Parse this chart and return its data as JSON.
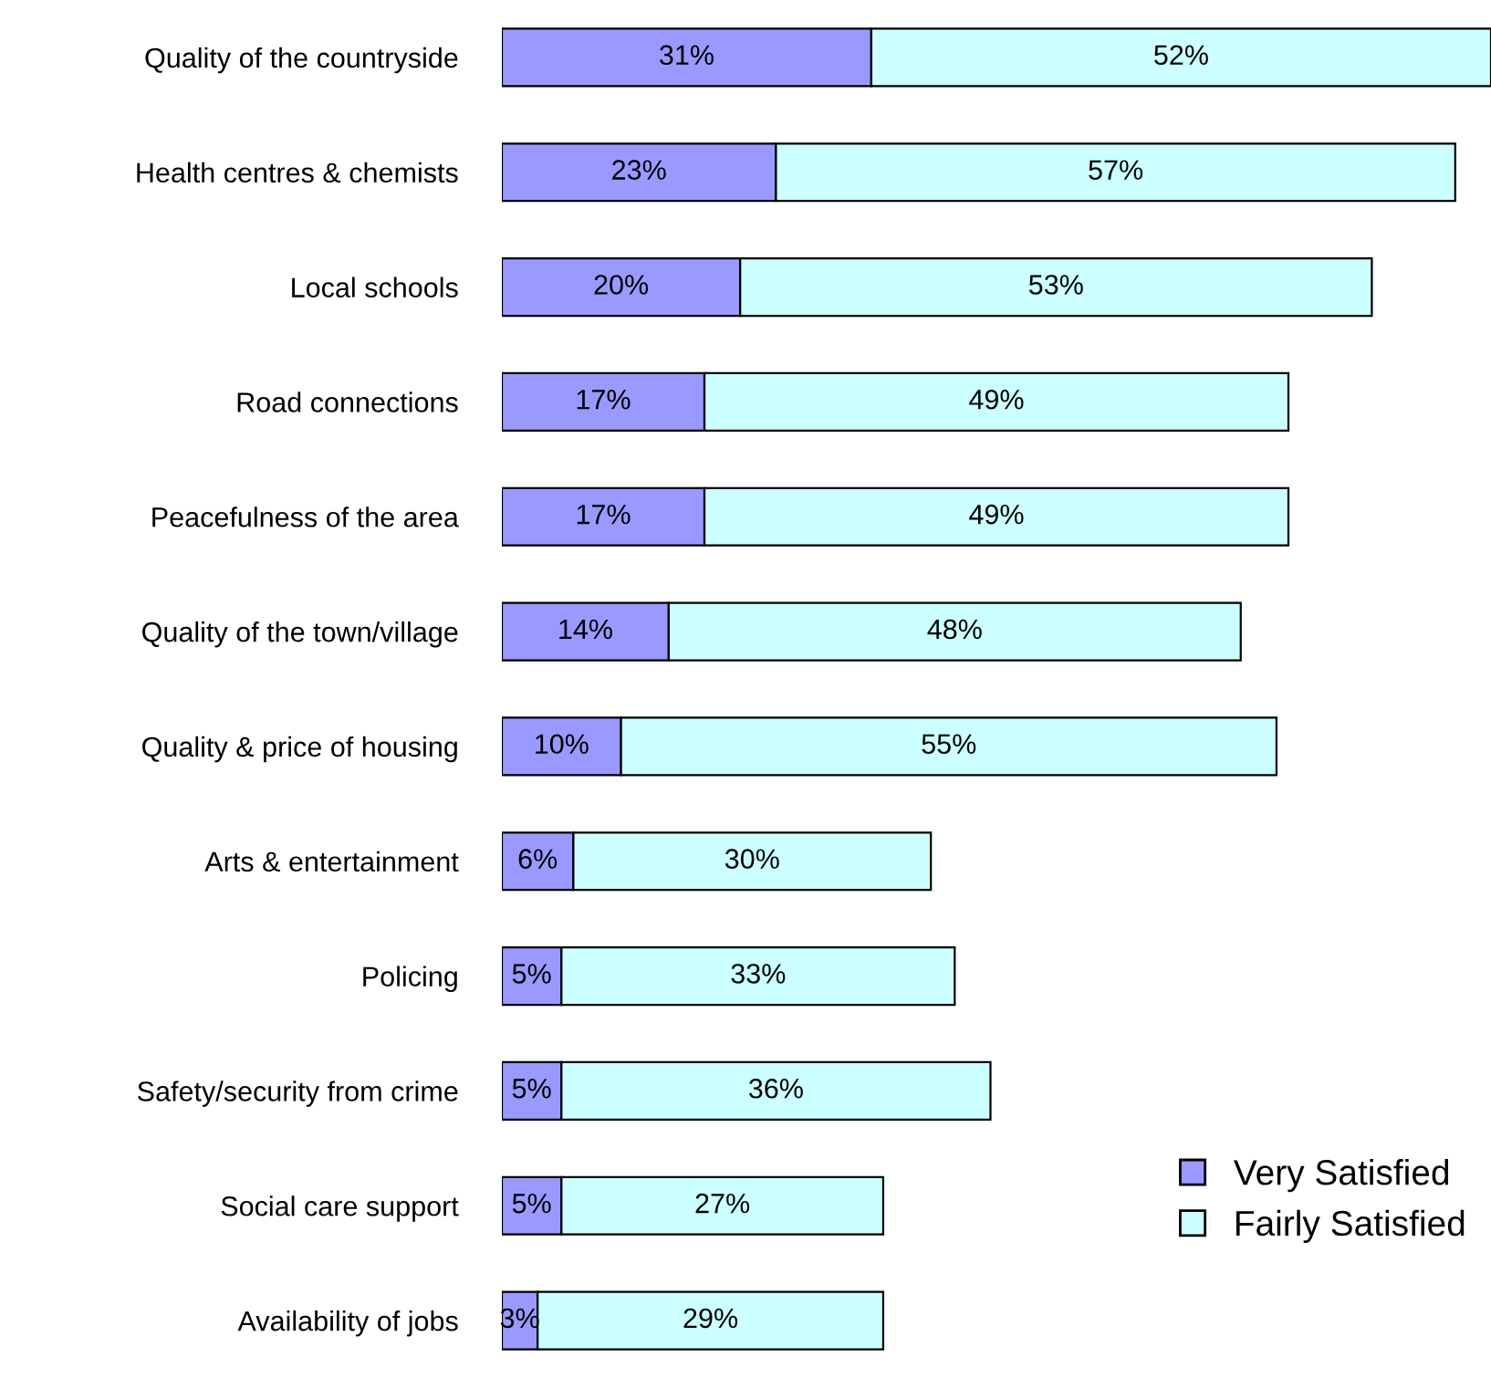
{
  "chart_data": {
    "type": "bar",
    "orientation": "horizontal",
    "stacked": true,
    "categories": [
      "Quality of the countryside",
      "Health centres & chemists",
      "Local schools",
      "Road connections",
      "Peacefulness of the area",
      "Quality of the town/village",
      "Quality & price of housing",
      "Arts & entertainment",
      "Policing",
      "Safety/security from crime",
      "Social care support",
      "Availability of jobs"
    ],
    "series": [
      {
        "name": "Very Satisfied",
        "color": "#9999ff",
        "values": [
          31,
          23,
          20,
          17,
          17,
          14,
          10,
          6,
          5,
          5,
          5,
          3
        ],
        "value_labels": [
          "31%",
          "23%",
          "20%",
          "17%",
          "17%",
          "14%",
          "10%",
          "6%",
          "5%",
          "5%",
          "5%",
          "3%"
        ]
      },
      {
        "name": "Fairly Satisfied",
        "color": "#ccffff",
        "values": [
          52,
          57,
          53,
          49,
          49,
          48,
          55,
          30,
          33,
          36,
          27,
          29
        ],
        "value_labels": [
          "52%",
          "57%",
          "53%",
          "49%",
          "49%",
          "48%",
          "55%",
          "30%",
          "33%",
          "36%",
          "27%",
          "29%"
        ]
      }
    ],
    "xlim": [
      0,
      83
    ],
    "tick_labels": "y",
    "grid": false,
    "legend": "bottom right"
  }
}
